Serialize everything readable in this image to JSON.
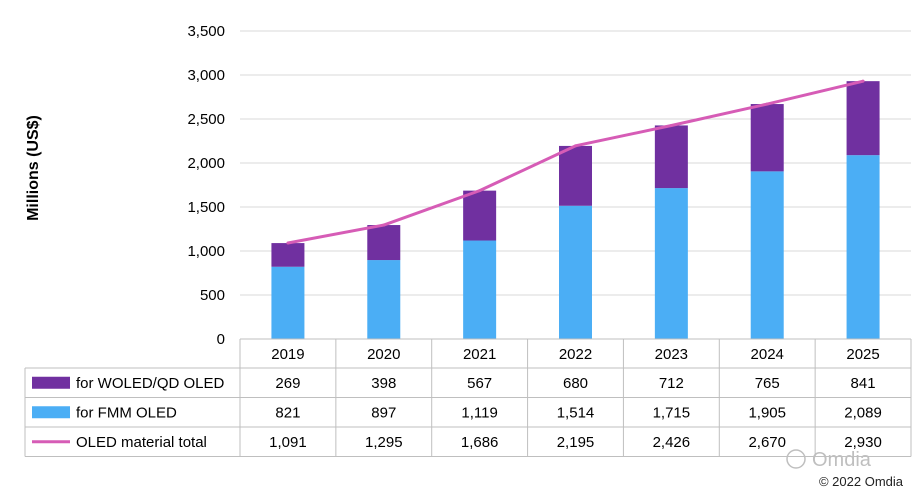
{
  "chart_data": {
    "type": "bar",
    "stacked": true,
    "title": "",
    "xlabel": "",
    "ylabel": "Millions (US$)",
    "ylim": [
      0,
      3500
    ],
    "yticks": [
      0,
      500,
      1000,
      1500,
      2000,
      2500,
      3000,
      3500
    ],
    "ytick_labels": [
      "0",
      "500",
      "1,000",
      "1,500",
      "2,000",
      "2,500",
      "3,000",
      "3,500"
    ],
    "grid": true,
    "categories": [
      "2019",
      "2020",
      "2021",
      "2022",
      "2023",
      "2024",
      "2025"
    ],
    "series": [
      {
        "name": "for WOLED/QD OLED",
        "kind": "bar",
        "color": "#7030a0",
        "values": [
          269,
          398,
          567,
          680,
          712,
          765,
          841
        ],
        "labels": [
          "269",
          "398",
          "567",
          "680",
          "712",
          "765",
          "841"
        ]
      },
      {
        "name": "for FMM OLED",
        "kind": "bar",
        "color": "#4baef5",
        "values": [
          821,
          897,
          1119,
          1514,
          1715,
          1905,
          2089
        ],
        "labels": [
          "821",
          "897",
          "1,119",
          "1,514",
          "1,715",
          "1,905",
          "2,089"
        ]
      },
      {
        "name": "OLED material total",
        "kind": "line",
        "color": "#d65cb6",
        "values": [
          1091,
          1295,
          1686,
          2195,
          2426,
          2670,
          2930
        ],
        "labels": [
          "1,091",
          "1,295",
          "1,686",
          "2,195",
          "2,426",
          "2,670",
          "2,930"
        ]
      }
    ],
    "legend": "data-table-left"
  },
  "watermark": "Omdia",
  "copyright": "© 2022 Omdia"
}
